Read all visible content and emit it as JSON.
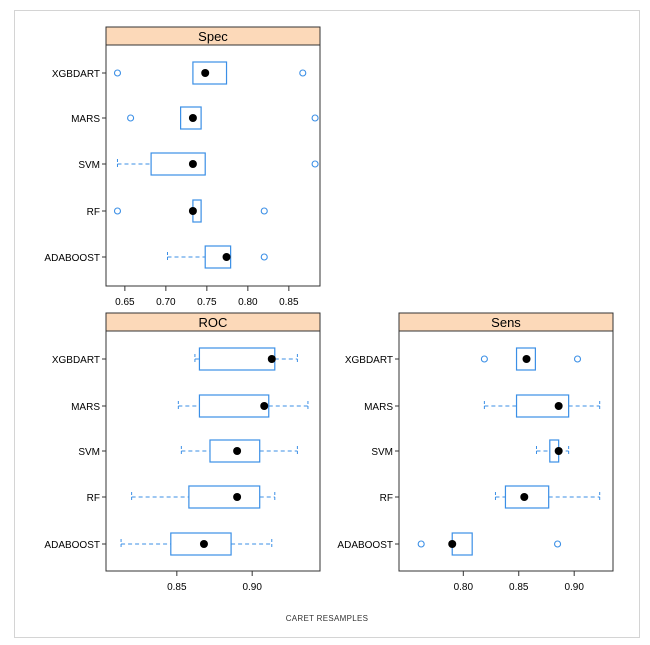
{
  "caption": "CARET  RESAMPLES",
  "colors": {
    "strip": "#fcd9b9",
    "box": "#3b8fe6",
    "median": "#000000",
    "axis": "#333333"
  },
  "chart_data": [
    {
      "type": "box",
      "title": "Spec",
      "categories": [
        "XGBDART",
        "MARS",
        "SVM",
        "RF",
        "ADABOOST"
      ],
      "xlim": [
        0.627,
        0.888
      ],
      "xticks": [
        0.65,
        0.7,
        0.75,
        0.8,
        0.85
      ],
      "xtick_labels": [
        "0.65",
        "0.70",
        "0.75",
        "0.80",
        "0.85"
      ],
      "series": [
        {
          "name": "XGBDART",
          "min": 0.733,
          "q1": 0.733,
          "median": 0.748,
          "q3": 0.774,
          "max": 0.774,
          "outliers": [
            0.641,
            0.867
          ]
        },
        {
          "name": "MARS",
          "min": 0.718,
          "q1": 0.718,
          "median": 0.733,
          "q3": 0.743,
          "max": 0.743,
          "outliers": [
            0.657,
            0.882
          ]
        },
        {
          "name": "SVM",
          "min": 0.641,
          "q1": 0.682,
          "median": 0.733,
          "q3": 0.748,
          "max": 0.748,
          "outliers": [
            0.882
          ]
        },
        {
          "name": "RF",
          "min": 0.733,
          "q1": 0.733,
          "median": 0.733,
          "q3": 0.743,
          "max": 0.743,
          "outliers": [
            0.641,
            0.82
          ]
        },
        {
          "name": "ADABOOST",
          "min": 0.702,
          "q1": 0.748,
          "median": 0.774,
          "q3": 0.779,
          "max": 0.779,
          "outliers": [
            0.82
          ]
        }
      ]
    },
    {
      "type": "box",
      "title": "ROC",
      "categories": [
        "XGBDART",
        "MARS",
        "SVM",
        "RF",
        "ADABOOST"
      ],
      "xlim": [
        0.803,
        0.945
      ],
      "xticks": [
        0.85,
        0.9
      ],
      "xtick_labels": [
        "0.85",
        "0.90"
      ],
      "series": [
        {
          "name": "XGBDART",
          "min": 0.862,
          "q1": 0.865,
          "median": 0.913,
          "q3": 0.915,
          "max": 0.93,
          "outliers": []
        },
        {
          "name": "MARS",
          "min": 0.851,
          "q1": 0.865,
          "median": 0.908,
          "q3": 0.911,
          "max": 0.937,
          "outliers": []
        },
        {
          "name": "SVM",
          "min": 0.853,
          "q1": 0.872,
          "median": 0.89,
          "q3": 0.905,
          "max": 0.93,
          "outliers": []
        },
        {
          "name": "RF",
          "min": 0.82,
          "q1": 0.858,
          "median": 0.89,
          "q3": 0.905,
          "max": 0.915,
          "outliers": []
        },
        {
          "name": "ADABOOST",
          "min": 0.813,
          "q1": 0.846,
          "median": 0.868,
          "q3": 0.886,
          "max": 0.913,
          "outliers": []
        }
      ]
    },
    {
      "type": "box",
      "title": "Sens",
      "categories": [
        "XGBDART",
        "MARS",
        "SVM",
        "RF",
        "ADABOOST"
      ],
      "xlim": [
        0.742,
        0.935
      ],
      "xticks": [
        0.8,
        0.85,
        0.9
      ],
      "xtick_labels": [
        "0.80",
        "0.85",
        "0.90"
      ],
      "series": [
        {
          "name": "XGBDART",
          "min": 0.848,
          "q1": 0.848,
          "median": 0.857,
          "q3": 0.865,
          "max": 0.865,
          "outliers": [
            0.819,
            0.903
          ]
        },
        {
          "name": "MARS",
          "min": 0.819,
          "q1": 0.848,
          "median": 0.886,
          "q3": 0.895,
          "max": 0.923,
          "outliers": []
        },
        {
          "name": "SVM",
          "min": 0.866,
          "q1": 0.878,
          "median": 0.886,
          "q3": 0.886,
          "max": 0.895,
          "outliers": []
        },
        {
          "name": "RF",
          "min": 0.829,
          "q1": 0.838,
          "median": 0.855,
          "q3": 0.877,
          "max": 0.923,
          "outliers": []
        },
        {
          "name": "ADABOOST",
          "min": 0.79,
          "q1": 0.79,
          "median": 0.79,
          "q3": 0.808,
          "max": 0.808,
          "outliers": [
            0.762,
            0.885
          ]
        }
      ]
    }
  ]
}
